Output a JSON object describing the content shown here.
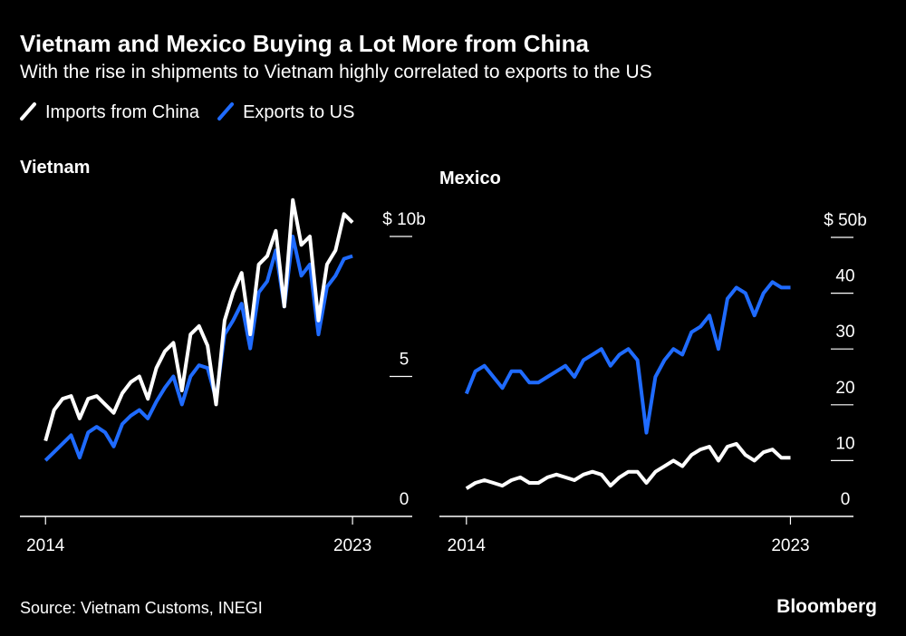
{
  "title": "Vietnam and Mexico Buying a Lot More from China",
  "subtitle": "With the rise in shipments to Vietnam highly correlated to exports to the US",
  "source": "Source: Vietnam Customs, INEGI",
  "brand": "Bloomberg",
  "chart_data": [
    {
      "type": "line",
      "title": "Vietnam",
      "x": [
        2014,
        2014.25,
        2014.5,
        2014.75,
        2015,
        2015.25,
        2015.5,
        2015.75,
        2016,
        2016.25,
        2016.5,
        2016.75,
        2017,
        2017.25,
        2017.5,
        2017.75,
        2018,
        2018.25,
        2018.5,
        2018.75,
        2019,
        2019.25,
        2019.5,
        2019.75,
        2020,
        2020.25,
        2020.5,
        2020.75,
        2021,
        2021.25,
        2021.5,
        2021.75,
        2022,
        2022.25,
        2022.5,
        2022.75,
        2023
      ],
      "series": [
        {
          "name": "Imports from China",
          "color": "#ffffff",
          "values": [
            2.7,
            3.8,
            4.2,
            4.3,
            3.5,
            4.2,
            4.3,
            4.0,
            3.7,
            4.4,
            4.8,
            5.0,
            4.2,
            5.3,
            5.9,
            6.2,
            4.5,
            6.5,
            6.8,
            6.1,
            4.0,
            7.0,
            8.0,
            8.7,
            6.5,
            9.0,
            9.3,
            10.2,
            7.5,
            11.3,
            9.7,
            10.0,
            7.0,
            9.0,
            9.5,
            10.8,
            10.5
          ]
        },
        {
          "name": "Exports to US",
          "color": "#1f6bff",
          "values": [
            2.0,
            2.3,
            2.6,
            2.9,
            2.1,
            3.0,
            3.2,
            3.0,
            2.5,
            3.3,
            3.6,
            3.8,
            3.5,
            4.1,
            4.6,
            5.0,
            4.0,
            5.0,
            5.4,
            5.3,
            4.2,
            6.5,
            7.0,
            7.6,
            6.0,
            8.0,
            8.4,
            9.5,
            7.5,
            10.0,
            8.6,
            9.0,
            6.5,
            8.2,
            8.6,
            9.2,
            9.3
          ]
        }
      ],
      "xlim": [
        2013.25,
        2024.75
      ],
      "xticks": [
        2014,
        2023
      ],
      "ylim": [
        0,
        11.5
      ],
      "yticks": [
        0,
        5,
        {
          "value": 10,
          "label": "$ 10b"
        }
      ]
    },
    {
      "type": "line",
      "title": "Mexico",
      "x": [
        2014,
        2014.25,
        2014.5,
        2014.75,
        2015,
        2015.25,
        2015.5,
        2015.75,
        2016,
        2016.25,
        2016.5,
        2016.75,
        2017,
        2017.25,
        2017.5,
        2017.75,
        2018,
        2018.25,
        2018.5,
        2018.75,
        2019,
        2019.25,
        2019.5,
        2019.75,
        2020,
        2020.25,
        2020.5,
        2020.75,
        2021,
        2021.25,
        2021.5,
        2021.75,
        2022,
        2022.25,
        2022.5,
        2022.75,
        2023
      ],
      "series": [
        {
          "name": "Imports from China",
          "color": "#ffffff",
          "values": [
            5,
            6,
            6.5,
            6,
            5.5,
            6.5,
            7,
            6,
            6,
            7,
            7.5,
            7,
            6.5,
            7.5,
            8,
            7.5,
            5.5,
            7,
            8,
            8,
            6,
            8,
            9,
            10,
            9,
            11,
            12,
            12.5,
            10,
            12.5,
            13,
            11,
            10,
            11.5,
            12,
            10.5,
            10.5
          ]
        },
        {
          "name": "Exports to US",
          "color": "#1f6bff",
          "values": [
            22,
            26,
            27,
            25,
            23,
            26,
            26,
            24,
            24,
            25,
            26,
            27,
            25,
            28,
            29,
            30,
            27,
            29,
            30,
            28,
            15,
            25,
            28,
            30,
            29,
            33,
            34,
            36,
            30,
            39,
            41,
            40,
            36,
            40,
            42,
            41,
            41
          ]
        }
      ],
      "xlim": [
        2013.25,
        2024.75
      ],
      "xticks": [
        2014,
        2023
      ],
      "ylim": [
        0,
        50
      ],
      "yticks": [
        0,
        10,
        20,
        30,
        40,
        {
          "value": 50,
          "label": "$ 50b"
        }
      ]
    }
  ]
}
